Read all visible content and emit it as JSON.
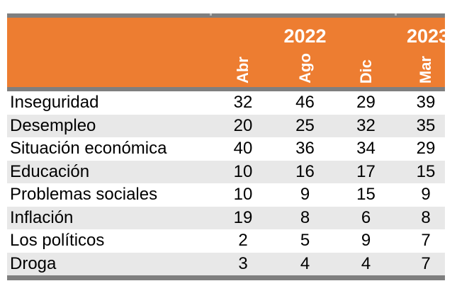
{
  "table": {
    "years": [
      "2022",
      "2023"
    ],
    "months": [
      "Abr",
      "Ago",
      "Dic",
      "Mar"
    ],
    "rows": [
      {
        "label": "Inseguridad",
        "values": [
          "32",
          "46",
          "29",
          "39"
        ]
      },
      {
        "label": "Desempleo",
        "values": [
          "20",
          "25",
          "32",
          "35"
        ]
      },
      {
        "label": "Situación económica",
        "values": [
          "40",
          "36",
          "34",
          "29"
        ]
      },
      {
        "label": "Educación",
        "values": [
          "10",
          "16",
          "17",
          "15"
        ]
      },
      {
        "label": "Problemas sociales",
        "values": [
          "10",
          "9",
          "15",
          "9"
        ]
      },
      {
        "label": "Inflación",
        "values": [
          "19",
          "8",
          "6",
          "8"
        ]
      },
      {
        "label": "Los políticos",
        "values": [
          "2",
          "5",
          "9",
          "7"
        ]
      },
      {
        "label": "Droga",
        "values": [
          "3",
          "4",
          "4",
          "7"
        ]
      }
    ]
  },
  "colors": {
    "header_bg": "#ED7D31",
    "border_gray": "#7F7F7F",
    "stripe_gray": "#E8E8E8",
    "header_text": "#FFFFFF",
    "body_text": "#000000"
  },
  "chart_data": {
    "type": "table",
    "title": "",
    "column_groups": [
      {
        "year": "2022",
        "months": [
          "Abr",
          "Ago",
          "Dic"
        ]
      },
      {
        "year": "2023",
        "months": [
          "Mar"
        ]
      }
    ],
    "columns": [
      "Abr 2022",
      "Ago 2022",
      "Dic 2022",
      "Mar 2023"
    ],
    "row_labels": [
      "Inseguridad",
      "Desempleo",
      "Situación económica",
      "Educación",
      "Problemas sociales",
      "Inflación",
      "Los políticos",
      "Droga"
    ],
    "values": [
      [
        32,
        46,
        29,
        39
      ],
      [
        20,
        25,
        32,
        35
      ],
      [
        40,
        36,
        34,
        29
      ],
      [
        10,
        16,
        17,
        15
      ],
      [
        10,
        9,
        15,
        9
      ],
      [
        19,
        8,
        6,
        8
      ],
      [
        2,
        5,
        9,
        7
      ],
      [
        3,
        4,
        4,
        7
      ]
    ],
    "layout_hints": {
      "months_rotated_90deg": true,
      "zebra_striping": true,
      "header_bg": "#ED7D31"
    }
  }
}
